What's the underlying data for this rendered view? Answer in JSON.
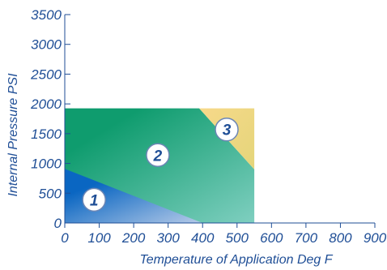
{
  "chart_data": {
    "type": "area",
    "title": "",
    "xlabel": "Temperature of Application Deg F",
    "ylabel": "Internal Pressure PSI",
    "xlim": [
      0,
      900
    ],
    "ylim": [
      0,
      3500
    ],
    "x_ticks": [
      0,
      100,
      200,
      300,
      400,
      500,
      600,
      700,
      800,
      900
    ],
    "y_ticks": [
      0,
      500,
      1000,
      1500,
      2000,
      2500,
      3000,
      3500
    ],
    "x_tick_labels": [
      "0",
      "100",
      "200",
      "300",
      "400",
      "500",
      "600",
      "700",
      "800",
      "900"
    ],
    "y_tick_labels": [
      "0",
      "500",
      "1000",
      "1500",
      "2000",
      "2500",
      "3000",
      "3500"
    ],
    "grid": false,
    "regions": [
      {
        "label": "2",
        "polygon": [
          [
            0,
            1925
          ],
          [
            390,
            1925
          ],
          [
            550,
            900
          ],
          [
            550,
            0
          ],
          [
            0,
            0
          ]
        ],
        "colors": [
          "#0f9c6e",
          "#7fcfc0"
        ]
      },
      {
        "label": "1",
        "polygon": [
          [
            0,
            0
          ],
          [
            0,
            910
          ],
          [
            400,
            0
          ]
        ],
        "colors": [
          "#0a66c2",
          "#b7cbe8"
        ]
      },
      {
        "label": "3",
        "polygon": [
          [
            390,
            1925
          ],
          [
            550,
            1925
          ],
          [
            550,
            900
          ]
        ],
        "colors": [
          "#f7d98a",
          "#e4d57a"
        ]
      }
    ],
    "region_labels": [
      {
        "text": "1",
        "x": 85,
        "y": 390
      },
      {
        "text": "2",
        "x": 270,
        "y": 1140
      },
      {
        "text": "3",
        "x": 470,
        "y": 1570
      }
    ],
    "colors": {
      "axis": "#1f4e96",
      "label_circle_fill": "#ffffff"
    }
  }
}
